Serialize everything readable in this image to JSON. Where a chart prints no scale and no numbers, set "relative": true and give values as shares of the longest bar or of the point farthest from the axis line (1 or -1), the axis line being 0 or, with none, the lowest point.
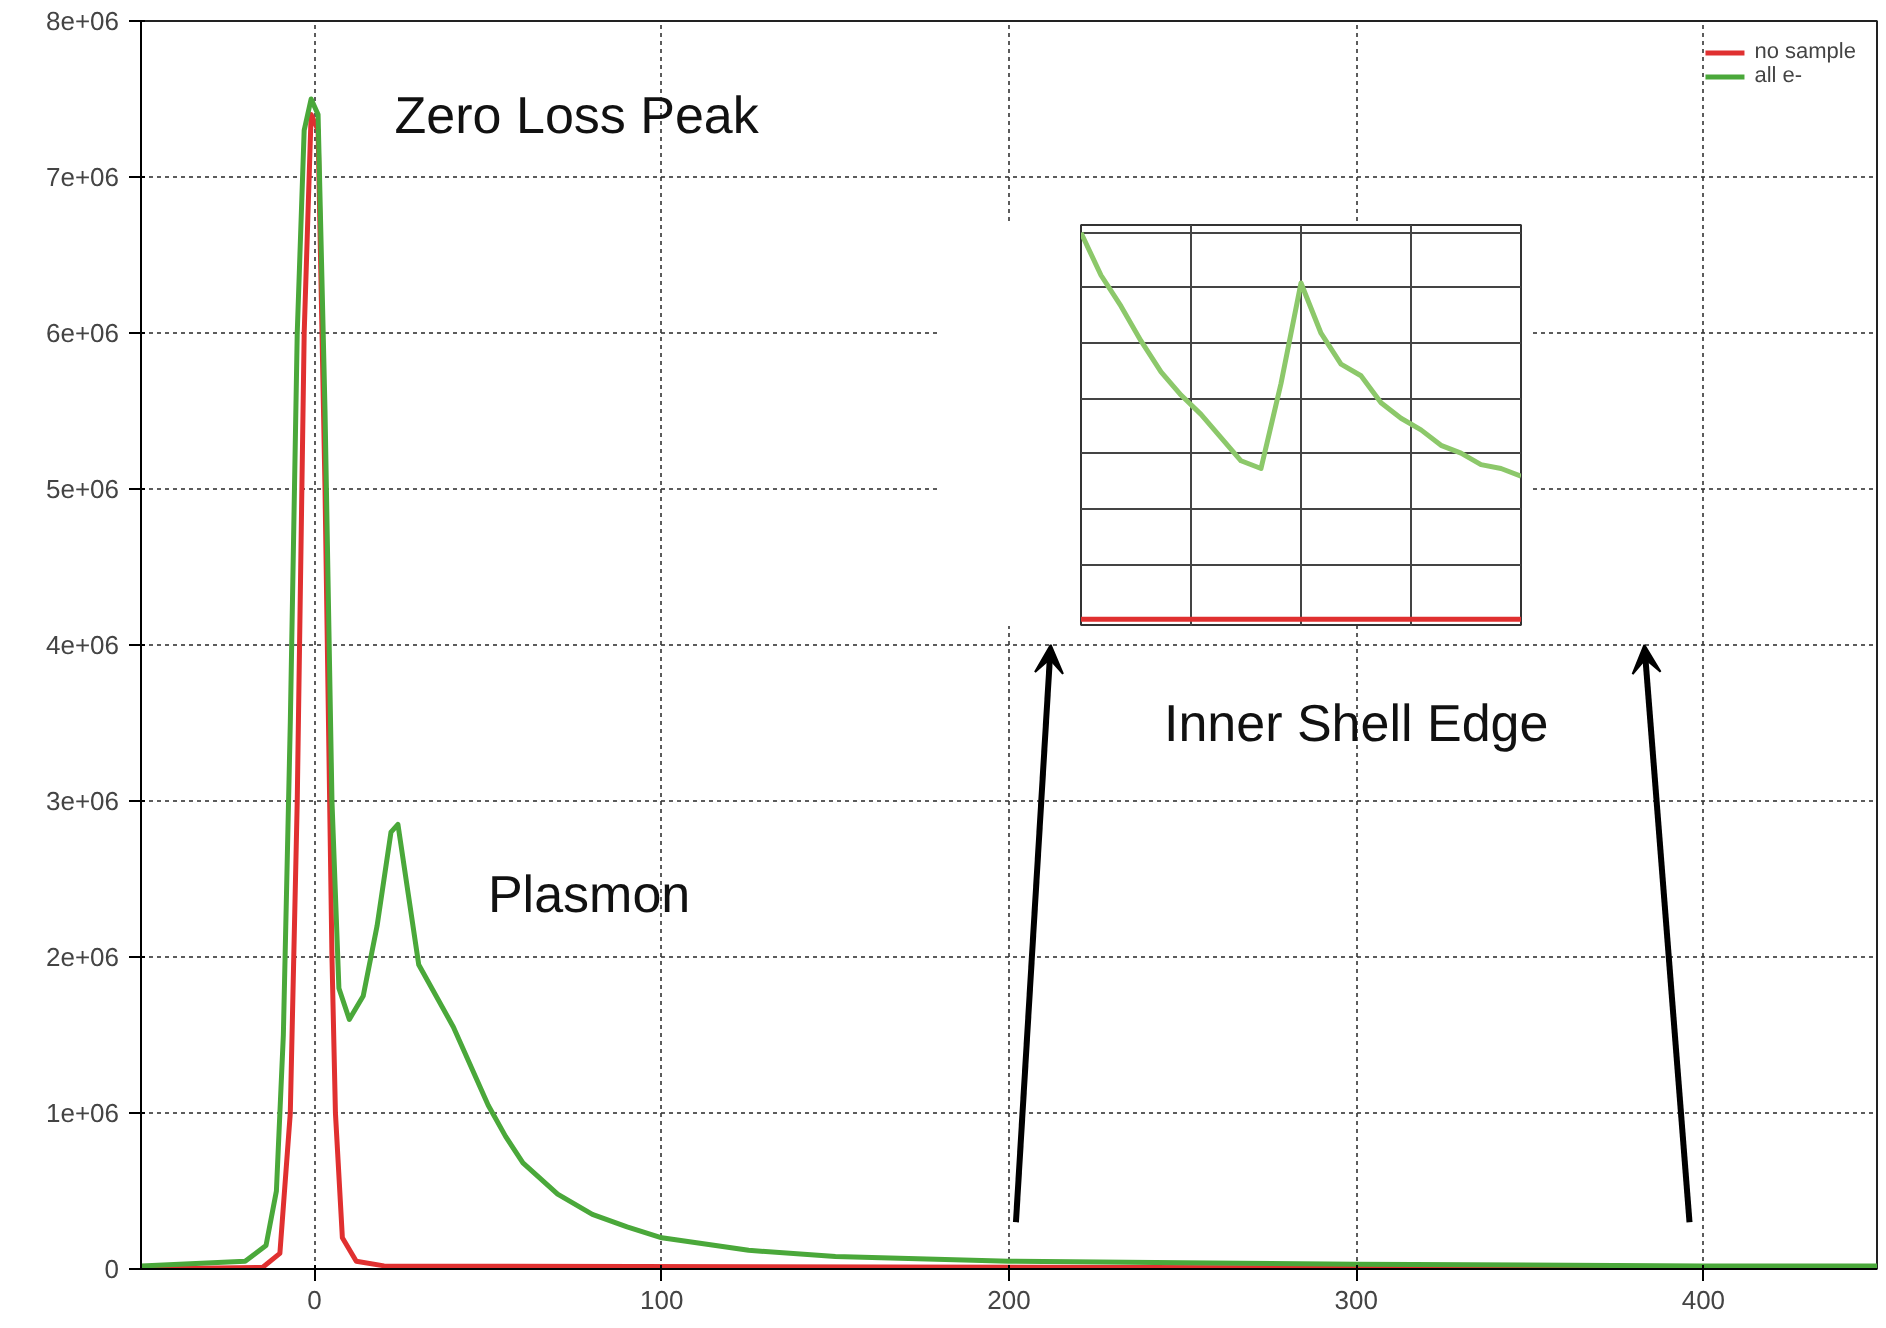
{
  "chart_data": [
    {
      "type": "line",
      "xlim": [
        -50,
        450
      ],
      "ylim": [
        0,
        8000000
      ],
      "xticks": [
        0,
        100,
        200,
        300,
        400
      ],
      "yticks": [
        {
          "value": 0,
          "label": "0"
        },
        {
          "value": 1000000,
          "label": "1e+06"
        },
        {
          "value": 2000000,
          "label": "2e+06"
        },
        {
          "value": 3000000,
          "label": "3e+06"
        },
        {
          "value": 4000000,
          "label": "4e+06"
        },
        {
          "value": 5000000,
          "label": "5e+06"
        },
        {
          "value": 6000000,
          "label": "6e+06"
        },
        {
          "value": 7000000,
          "label": "7e+06"
        },
        {
          "value": 8000000,
          "label": "8e+06"
        }
      ],
      "grid": true,
      "legend": "top right",
      "line_style": "solid",
      "annotations": [
        {
          "text": "Zero Loss Peak",
          "x": 0,
          "y": 7500000
        },
        {
          "text": "Plasmon",
          "x": 24,
          "y": 2850000
        },
        "Inner Shell Edge"
      ],
      "series": [
        {
          "name": "no sample",
          "color": "#e03030",
          "x": [
            -50,
            -15,
            -10,
            -7,
            -5,
            -3,
            -1,
            1,
            3,
            5,
            6,
            8,
            12,
            20,
            450
          ],
          "values": [
            0,
            10000,
            100000,
            1000000,
            3000000,
            6000000,
            7400000,
            7300000,
            5000000,
            2000000,
            1000000,
            200000,
            50000,
            20000,
            0
          ]
        },
        {
          "name": "all e-",
          "color": "#4aa83a",
          "x": [
            -50,
            -20,
            -14,
            -11,
            -9,
            -7,
            -5,
            -3,
            -1,
            1,
            3,
            5,
            7,
            10,
            14,
            18,
            22,
            24,
            27,
            30,
            35,
            40,
            45,
            50,
            55,
            60,
            70,
            80,
            90,
            100,
            125,
            150,
            200,
            250,
            300,
            400,
            450
          ],
          "values": [
            20000,
            50000,
            150000,
            500000,
            1500000,
            3500000,
            6000000,
            7300000,
            7500000,
            7400000,
            5500000,
            3000000,
            1800000,
            1600000,
            1750000,
            2200000,
            2800000,
            2850000,
            2400000,
            1950000,
            1750000,
            1550000,
            1300000,
            1050000,
            850000,
            680000,
            480000,
            350000,
            270000,
            200000,
            120000,
            80000,
            50000,
            40000,
            30000,
            20000,
            20000
          ]
        }
      ]
    },
    {
      "type": "line",
      "relative": true,
      "grid": true,
      "categories": [
        null,
        null,
        null,
        null,
        null,
        null,
        null,
        null,
        null,
        null,
        null,
        null,
        null,
        null,
        null,
        null,
        null,
        null,
        null,
        null,
        null,
        null,
        null
      ],
      "series": [
        {
          "color": "#e03030",
          "values": [
            0,
            0,
            0,
            0,
            0,
            0,
            0,
            0,
            0,
            0,
            0,
            0,
            0,
            0,
            0,
            0,
            0,
            0,
            0,
            0,
            0,
            0,
            0
          ]
        },
        {
          "color": "#8cc86a",
          "values": [
            1.0,
            0.89,
            0.81,
            0.72,
            0.64,
            0.58,
            0.53,
            0.47,
            0.41,
            0.39,
            0.61,
            0.87,
            0.74,
            0.66,
            0.63,
            0.56,
            0.52,
            0.49,
            0.45,
            0.43,
            0.4,
            0.39,
            0.37
          ]
        }
      ]
    }
  ]
}
